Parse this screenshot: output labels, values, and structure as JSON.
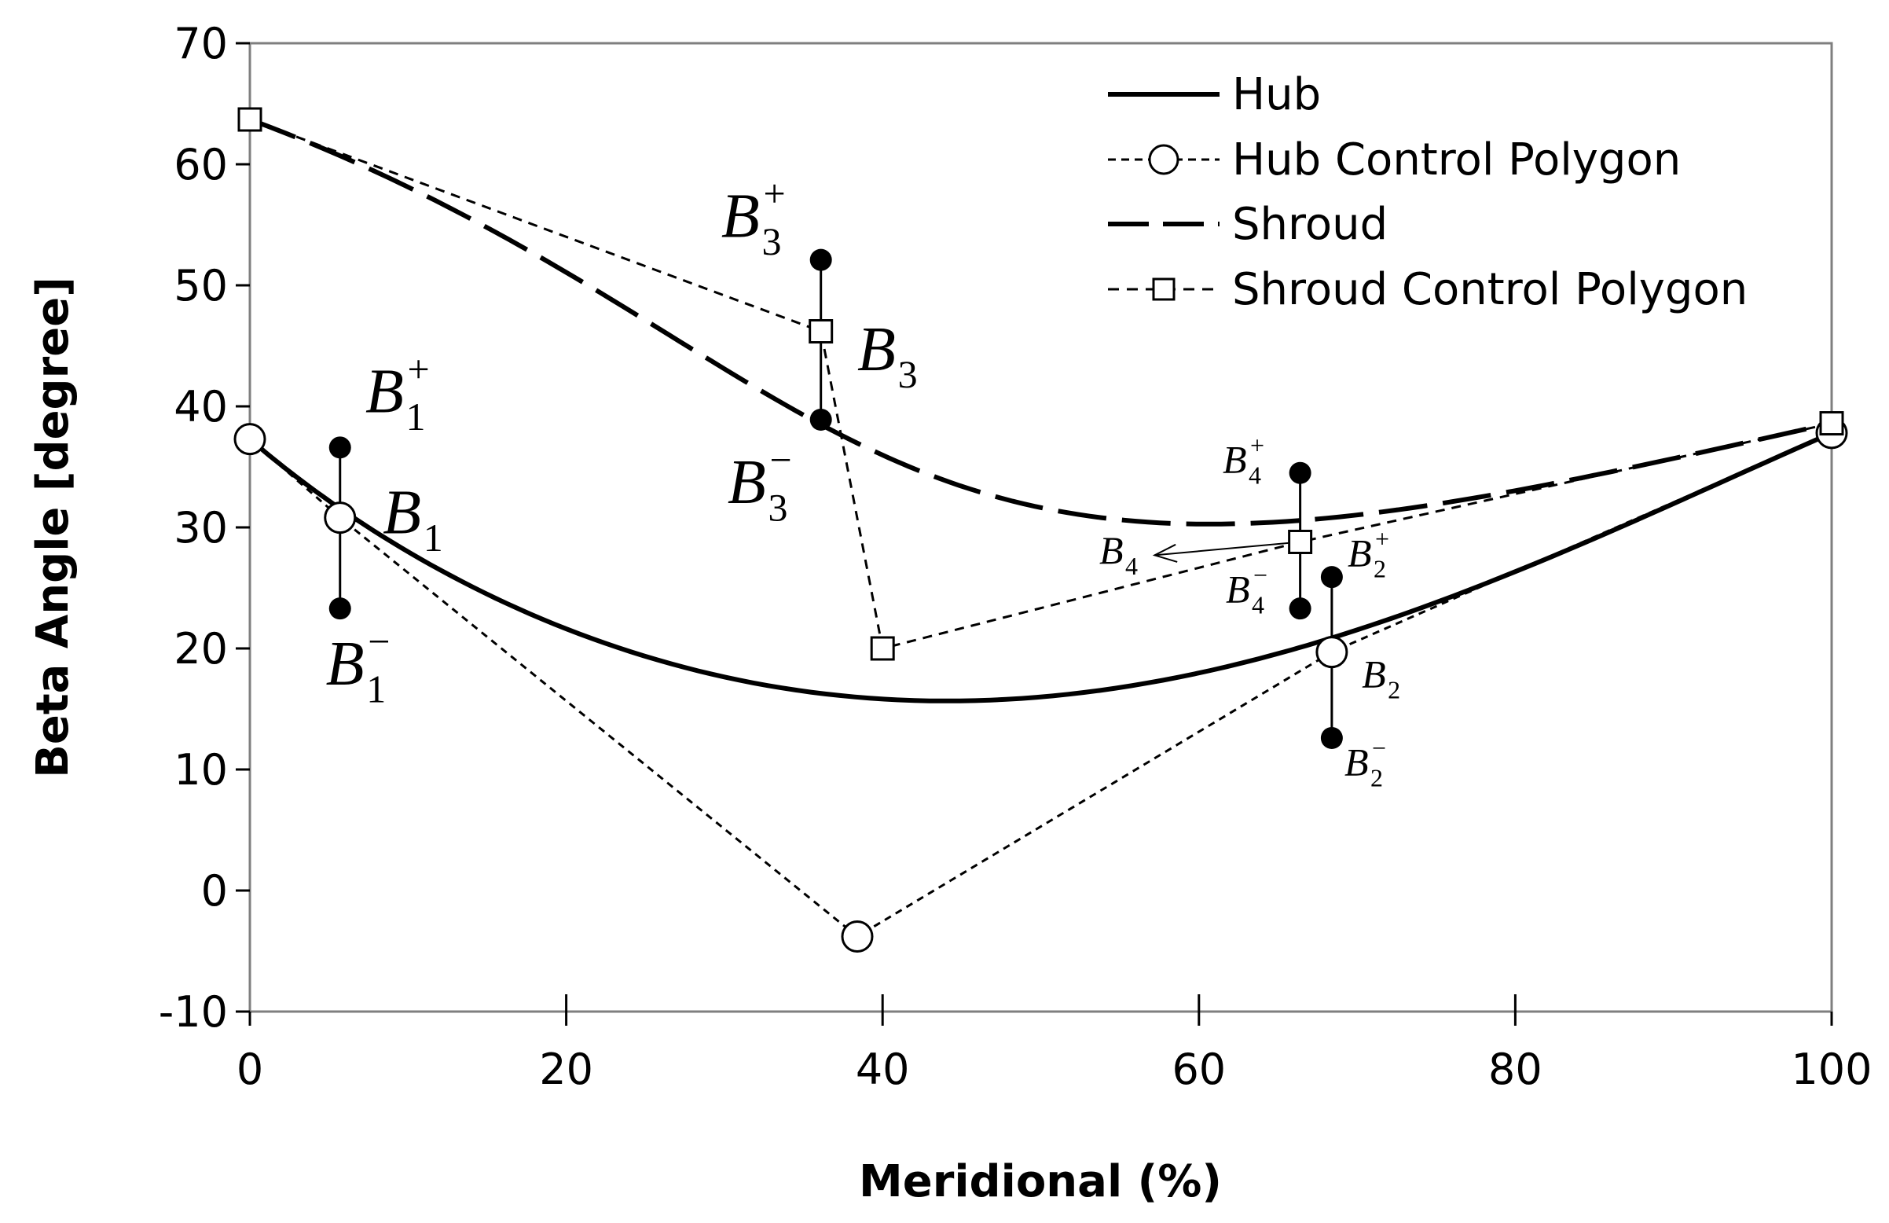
{
  "chart_data": {
    "type": "line",
    "title": "",
    "xlabel": "Meridional (%)",
    "ylabel": "Beta Angle [degree]",
    "xlim": [
      0,
      100
    ],
    "ylim": [
      -10,
      70
    ],
    "xticks": [
      0,
      20,
      40,
      60,
      80,
      100
    ],
    "yticks": [
      -10,
      0,
      10,
      20,
      30,
      40,
      50,
      60,
      70
    ],
    "xtick_labels": [
      "0",
      "20",
      "40",
      "60",
      "80",
      "100"
    ],
    "ytick_labels": [
      "-10",
      "0",
      "10",
      "20",
      "30",
      "40",
      "50",
      "60",
      "70"
    ],
    "grid": false,
    "legend_position": "top-right",
    "series": [
      {
        "name": "Hub",
        "style": "solid",
        "x": [
          0,
          5.7,
          38.4,
          68.4,
          100
        ],
        "y": [
          37.3,
          30.8,
          -3.8,
          19.7,
          37.8
        ],
        "curve": "bezier"
      },
      {
        "name": "Hub Control Polygon",
        "style": "dotted-circle",
        "x": [
          0,
          5.7,
          38.4,
          68.4,
          100
        ],
        "y": [
          37.3,
          30.8,
          -3.8,
          19.7,
          37.8
        ]
      },
      {
        "name": "Shroud",
        "style": "long-dash",
        "x": [
          0,
          36.1,
          40,
          66.4,
          100
        ],
        "y": [
          63.7,
          46.2,
          20.0,
          28.8,
          38.6
        ],
        "curve": "bezier"
      },
      {
        "name": "Shroud Control Polygon",
        "style": "dashed-square",
        "x": [
          0,
          36.1,
          40,
          66.4,
          100
        ],
        "y": [
          63.7,
          46.2,
          20.0,
          28.8,
          38.6
        ]
      }
    ],
    "range_bars": [
      {
        "x": 5.7,
        "low": 23.3,
        "high": 36.6
      },
      {
        "x": 36.1,
        "low": 38.9,
        "high": 52.1
      },
      {
        "x": 66.4,
        "low": 23.3,
        "high": 34.5
      },
      {
        "x": 68.4,
        "low": 12.6,
        "high": 25.9
      }
    ],
    "annotations": [
      {
        "id": "b1",
        "base": "B",
        "sub": "1",
        "sup": "",
        "x": 8.4,
        "y": 29.5,
        "size": "large"
      },
      {
        "id": "b1p",
        "base": "B",
        "sub": "1",
        "sup": "+",
        "x": 7.3,
        "y": 39.5,
        "size": "large"
      },
      {
        "id": "b1m",
        "base": "B",
        "sub": "1",
        "sup": "−",
        "x": 4.8,
        "y": 17.0,
        "size": "large"
      },
      {
        "id": "b3",
        "base": "B",
        "sub": "3",
        "sup": "",
        "x": 38.4,
        "y": 43.0,
        "size": "large"
      },
      {
        "id": "b3p",
        "base": "B",
        "sub": "3",
        "sup": "+",
        "x": 29.8,
        "y": 54.0,
        "size": "large"
      },
      {
        "id": "b3m",
        "base": "B",
        "sub": "3",
        "sup": "−",
        "x": 30.2,
        "y": 32.0,
        "size": "large"
      },
      {
        "id": "b4",
        "base": "B",
        "sub": "4",
        "sup": "",
        "x": 53.7,
        "y": 27.0,
        "size": "small"
      },
      {
        "id": "b4p",
        "base": "B",
        "sub": "4",
        "sup": "+",
        "x": 61.5,
        "y": 34.5,
        "size": "small"
      },
      {
        "id": "b4m",
        "base": "B",
        "sub": "4",
        "sup": "−",
        "x": 61.7,
        "y": 23.8,
        "size": "small"
      },
      {
        "id": "b2",
        "base": "B",
        "sub": "2",
        "sup": "",
        "x": 70.3,
        "y": 16.8,
        "size": "small"
      },
      {
        "id": "b2p",
        "base": "B",
        "sub": "2",
        "sup": "+",
        "x": 69.4,
        "y": 26.8,
        "size": "small"
      },
      {
        "id": "b2m",
        "base": "B",
        "sub": "2",
        "sup": "−",
        "x": 69.2,
        "y": 9.5,
        "size": "small"
      }
    ],
    "arrow": {
      "from_x": 66.4,
      "from_y": 28.8,
      "to_x": 57.2,
      "to_y": 27.7
    }
  },
  "colors": {
    "ink": "#000000",
    "background": "#ffffff"
  }
}
